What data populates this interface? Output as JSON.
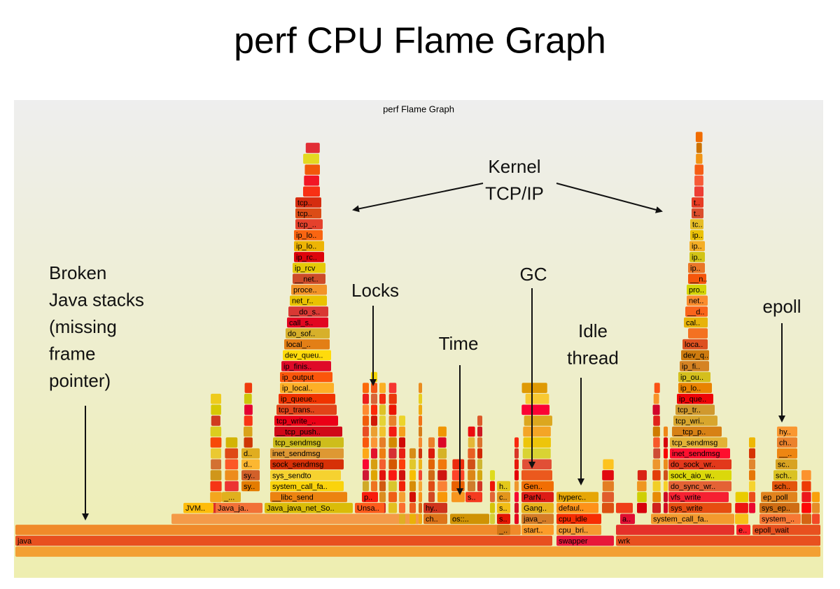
{
  "title": "perf CPU Flame Graph",
  "graph_title": "perf Flame Graph",
  "annotations": [
    {
      "lines": [
        "Kernel",
        "TCP/IP"
      ]
    },
    {
      "lines": [
        "Broken",
        "Java stacks",
        "(missing",
        "frame",
        "pointer)"
      ]
    },
    {
      "lines": [
        "Locks"
      ]
    },
    {
      "lines": [
        "GC"
      ]
    },
    {
      "lines": [
        "Time"
      ]
    },
    {
      "lines": [
        "Idle",
        "thread"
      ]
    },
    {
      "lines": [
        "epoll"
      ]
    }
  ],
  "frames": [
    "java",
    "swapper",
    "wrk",
    "start..",
    "cpu_bri..",
    "_..",
    "e..",
    "epoll_wait",
    "ch..",
    "os::..",
    "s..",
    "java_..",
    "cpu_idle",
    "a..",
    "system_call_fa..",
    "system_..",
    "JVM..",
    "Java_ja..",
    "Java_java_net_So..",
    "Unsa..",
    "hy..",
    "s..",
    "Gang..",
    "defaul..",
    "sys_write",
    "sys_ep..",
    "_...",
    "p..",
    "s..",
    "c..",
    "ParN..",
    "hyperc..",
    "vfs_write",
    "ep_poll",
    "sy..",
    "h..",
    "Gen..",
    "do_sync_wr..",
    "sch..",
    "sy..",
    "sock_aio_w..",
    "sch..",
    "d..",
    "do_sock_wr..",
    "sc..",
    "d..",
    "inet_sendmsg",
    "__..",
    "tcp_sendmsg",
    "ch..",
    "__tcp_p..",
    "hy..",
    "tcp_wri..",
    "tcp_tr..",
    "ip_que..",
    "ip_lo..",
    "ip_ou..",
    "ip_fi..",
    "dev_q..",
    "loca..",
    "cal..",
    "__d..",
    "net..",
    "pro..",
    "__n..",
    "ip..",
    "ip..",
    "ip..",
    "ip..",
    "tc..",
    "t..",
    "t..",
    "__libc_send",
    "system_call_fa..",
    "sys_sendto",
    "sock_sendmsg",
    "inet_sendmsg",
    "tcp_sendmsg",
    "__tcp_push..",
    "tcp_write_..",
    "tcp_trans..",
    "ip_queue..",
    "ip_local..",
    "ip_output",
    "ip_finis..",
    "dev_queu..",
    "local_..",
    "do_sof..",
    "call_s..",
    "__do_s..",
    "net_r..",
    "proce..",
    "__net..",
    "ip_rcv",
    "ip_rc..",
    "ip_lo..",
    "ip_lo..",
    "tcp_..",
    "tcp..",
    "tcp.."
  ]
}
